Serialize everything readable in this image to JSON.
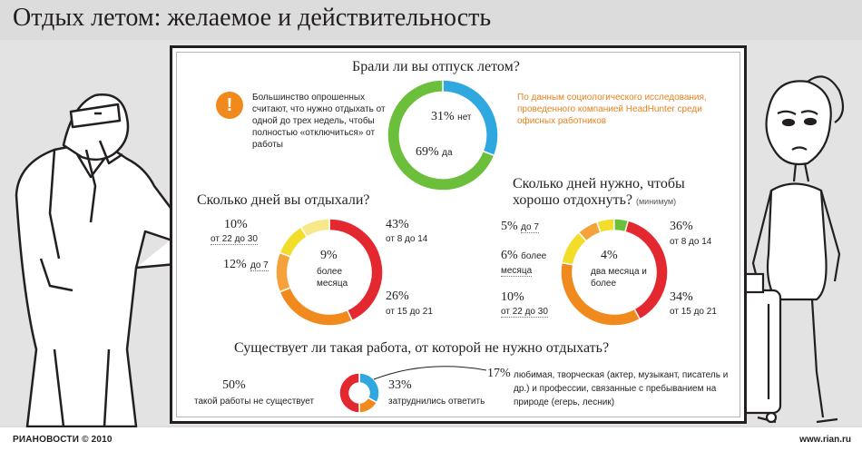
{
  "title": "Отдых летом: желаемое и действительность",
  "footer": {
    "left": "РИАНОВОСТИ © 2010",
    "right": "www.rian.ru"
  },
  "source_note": "По данным социологического исследования, проведенного компанией HeadHunter среди офисных работников",
  "warning_icon": "!",
  "warning_note": "Большинство опрошенных считают, что нужно отдыхать от одной до трех недель, чтобы полностью «отключиться» от работы",
  "colors": {
    "orange": "#f08a1c",
    "green": "#6cbf3a",
    "blue": "#2fa8e0",
    "red": "#e4282f",
    "yellow": "#f2de2a"
  },
  "chart_data": [
    {
      "type": "pie",
      "title": "Брали ли вы отпуск летом?",
      "slices": [
        {
          "label": "нет",
          "value": 31,
          "value_text": "31%",
          "color": "#2fa8e0"
        },
        {
          "label": "да",
          "value": 69,
          "value_text": "69%",
          "color": "#6cbf3a"
        }
      ]
    },
    {
      "type": "pie",
      "title": "Сколько дней вы отдыхали?",
      "slices": [
        {
          "label": "от 8 до 14",
          "value": 43,
          "value_text": "43%",
          "color": "#e4282f"
        },
        {
          "label": "от 15 до 21",
          "value": 26,
          "value_text": "26%",
          "color": "#f08a1c"
        },
        {
          "label": "до 7",
          "value": 12,
          "value_text": "12%",
          "color": "#f5a23a"
        },
        {
          "label": "от 22 до 30",
          "value": 10,
          "value_text": "10%",
          "color": "#f2de2a"
        },
        {
          "label": "более месяца",
          "value": 9,
          "value_text": "9%",
          "color": "#f7e98a"
        }
      ]
    },
    {
      "type": "pie",
      "title": "Сколько дней нужно, чтобы хорошо отдохнуть?",
      "subtitle": "(минимум)",
      "slices": [
        {
          "label": "от 8 до 14",
          "value": 36,
          "value_text": "36%",
          "color": "#e4282f"
        },
        {
          "label": "от 15 до 21",
          "value": 34,
          "value_text": "34%",
          "color": "#f08a1c"
        },
        {
          "label": "от 22 до 30",
          "value": 10,
          "value_text": "10%",
          "color": "#f2de2a"
        },
        {
          "label": "более месяца",
          "value": 6,
          "value_text": "6%",
          "color": "#f5a23a"
        },
        {
          "label": "до 7",
          "value": 5,
          "value_text": "5%",
          "color": "#f2de2a"
        },
        {
          "label": "два месяца и более",
          "value": 4,
          "value_text": "4%",
          "color": "#6cbf3a"
        }
      ]
    },
    {
      "type": "pie",
      "title": "Существует ли такая работа, от которой не нужно отдыхать?",
      "slices": [
        {
          "label": "такой работы не существует",
          "value": 50,
          "value_text": "50%",
          "color": "#e4282f"
        },
        {
          "label": "затруднились ответить",
          "value": 33,
          "value_text": "33%",
          "color": "#2fa8e0"
        },
        {
          "label": "любимая, творческая (актер, музыкант, писатель и др.) и профессии, связанные с пребыванием на природе (егерь, лесник)",
          "value": 17,
          "value_text": "17%",
          "color": "#f08a1c"
        }
      ]
    }
  ]
}
